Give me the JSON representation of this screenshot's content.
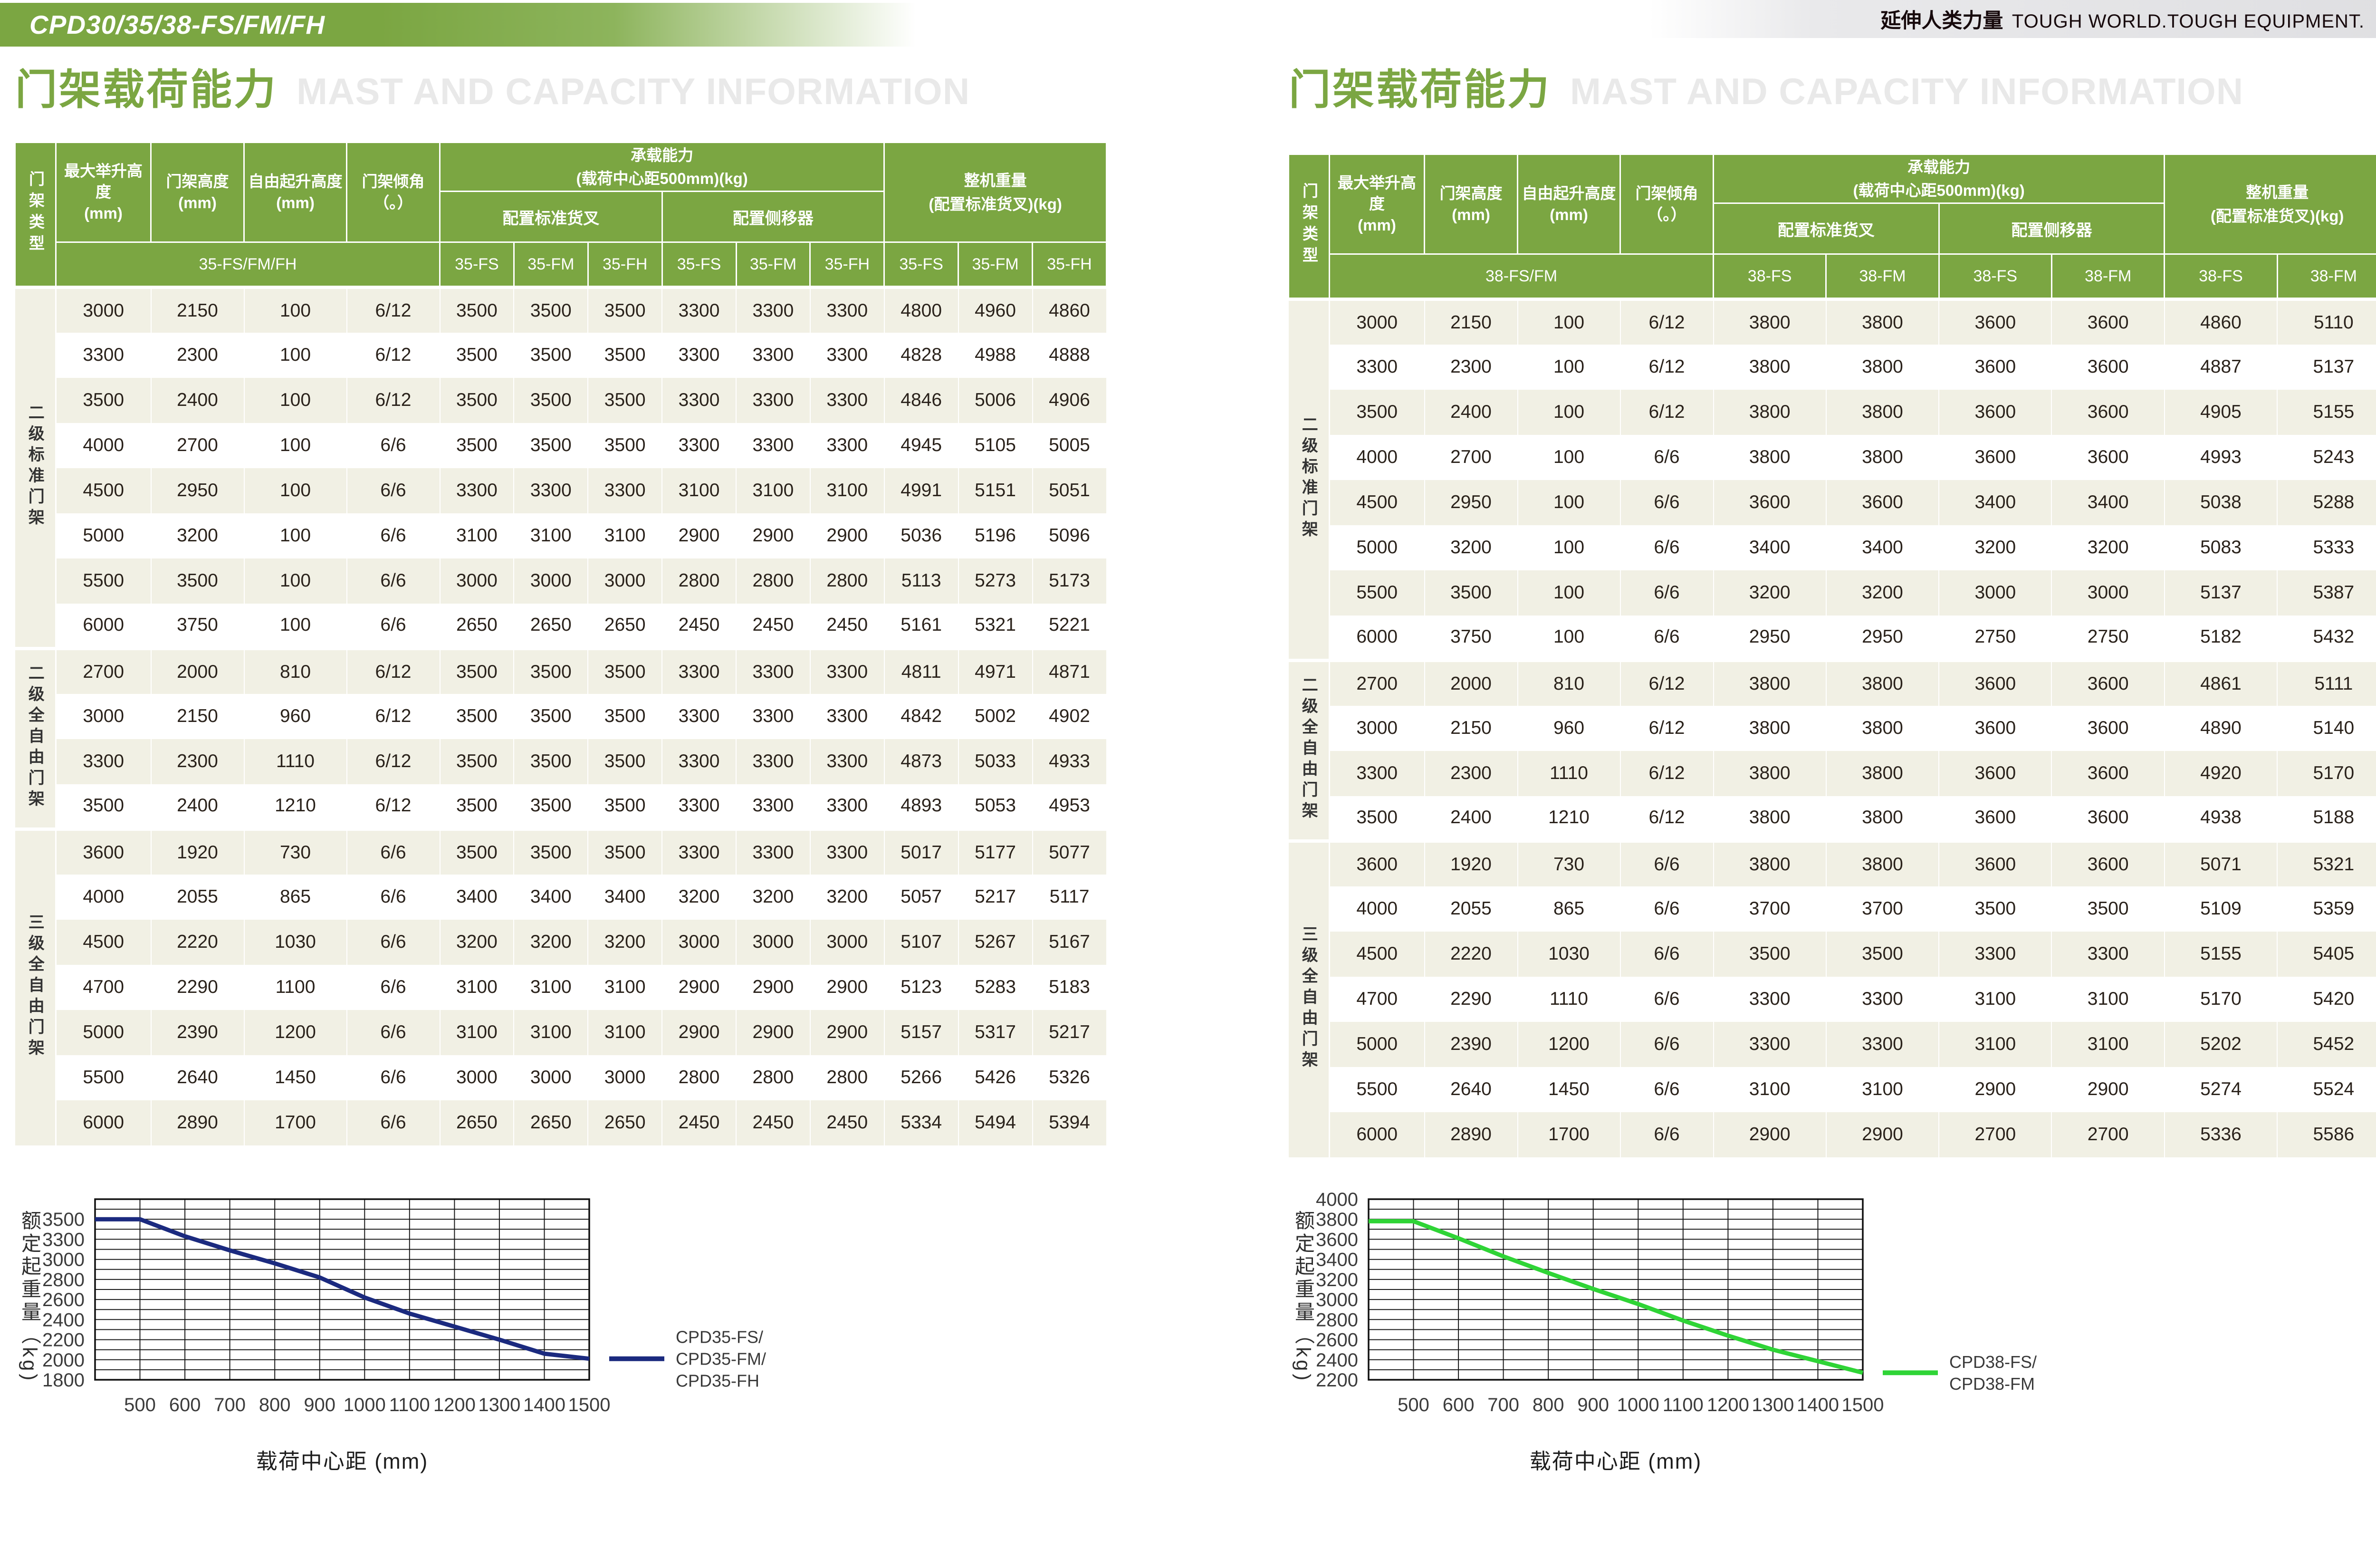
{
  "header": {
    "model_title": "CPD30/35/38-FS/FM/FH",
    "tagline_cn": "延伸人类力量",
    "tagline_en": "TOUGH WORLD.TOUGH EQUIPMENT."
  },
  "colors": {
    "brand_green": "#7ba642",
    "row_beige": "#f1f0e4",
    "curve_navy": "#1b2a7f",
    "curve_green": "#2fd436",
    "ghost_title_gray": "#e9e9e9"
  },
  "sections": [
    {
      "title_cn": "门架载荷能力",
      "title_en": "MAST AND CAPACITY INFORMATION",
      "chart_index": 0,
      "table": {
        "mast_type_header": "门架类型",
        "spec_headers": [
          "最大举升高度\n(mm)",
          "门架高度\n(mm)",
          "自由起升高度\n(mm)",
          "门架倾角\n（。）"
        ],
        "capacity_header": "承载能力\n(载荷中心距500mm)(kg)",
        "fork_header": "配置标准货叉",
        "sideshift_header": "配置侧移器",
        "weight_header": "整机重量\n(配置标准货叉)(kg)",
        "model_span_label": "35-FS/FM/FH",
        "model_columns": [
          "35-FS",
          "35-FM",
          "35-FH"
        ],
        "groups": [
          {
            "label": "二级标准门架",
            "rows": [
              [
                "3000",
                "2150",
                "100",
                "6/12",
                "3500",
                "3500",
                "3500",
                "3300",
                "3300",
                "3300",
                "4800",
                "4960",
                "4860"
              ],
              [
                "3300",
                "2300",
                "100",
                "6/12",
                "3500",
                "3500",
                "3500",
                "3300",
                "3300",
                "3300",
                "4828",
                "4988",
                "4888"
              ],
              [
                "3500",
                "2400",
                "100",
                "6/12",
                "3500",
                "3500",
                "3500",
                "3300",
                "3300",
                "3300",
                "4846",
                "5006",
                "4906"
              ],
              [
                "4000",
                "2700",
                "100",
                "6/6",
                "3500",
                "3500",
                "3500",
                "3300",
                "3300",
                "3300",
                "4945",
                "5105",
                "5005"
              ],
              [
                "4500",
                "2950",
                "100",
                "6/6",
                "3300",
                "3300",
                "3300",
                "3100",
                "3100",
                "3100",
                "4991",
                "5151",
                "5051"
              ],
              [
                "5000",
                "3200",
                "100",
                "6/6",
                "3100",
                "3100",
                "3100",
                "2900",
                "2900",
                "2900",
                "5036",
                "5196",
                "5096"
              ],
              [
                "5500",
                "3500",
                "100",
                "6/6",
                "3000",
                "3000",
                "3000",
                "2800",
                "2800",
                "2800",
                "5113",
                "5273",
                "5173"
              ],
              [
                "6000",
                "3750",
                "100",
                "6/6",
                "2650",
                "2650",
                "2650",
                "2450",
                "2450",
                "2450",
                "5161",
                "5321",
                "5221"
              ]
            ]
          },
          {
            "label": "二级全自由门架",
            "rows": [
              [
                "2700",
                "2000",
                "810",
                "6/12",
                "3500",
                "3500",
                "3500",
                "3300",
                "3300",
                "3300",
                "4811",
                "4971",
                "4871"
              ],
              [
                "3000",
                "2150",
                "960",
                "6/12",
                "3500",
                "3500",
                "3500",
                "3300",
                "3300",
                "3300",
                "4842",
                "5002",
                "4902"
              ],
              [
                "3300",
                "2300",
                "1110",
                "6/12",
                "3500",
                "3500",
                "3500",
                "3300",
                "3300",
                "3300",
                "4873",
                "5033",
                "4933"
              ],
              [
                "3500",
                "2400",
                "1210",
                "6/12",
                "3500",
                "3500",
                "3500",
                "3300",
                "3300",
                "3300",
                "4893",
                "5053",
                "4953"
              ]
            ]
          },
          {
            "label": "三级全自由门架",
            "rows": [
              [
                "3600",
                "1920",
                "730",
                "6/6",
                "3500",
                "3500",
                "3500",
                "3300",
                "3300",
                "3300",
                "5017",
                "5177",
                "5077"
              ],
              [
                "4000",
                "2055",
                "865",
                "6/6",
                "3400",
                "3400",
                "3400",
                "3200",
                "3200",
                "3200",
                "5057",
                "5217",
                "5117"
              ],
              [
                "4500",
                "2220",
                "1030",
                "6/6",
                "3200",
                "3200",
                "3200",
                "3000",
                "3000",
                "3000",
                "5107",
                "5267",
                "5167"
              ],
              [
                "4700",
                "2290",
                "1100",
                "6/6",
                "3100",
                "3100",
                "3100",
                "2900",
                "2900",
                "2900",
                "5123",
                "5283",
                "5183"
              ],
              [
                "5000",
                "2390",
                "1200",
                "6/6",
                "3100",
                "3100",
                "3100",
                "2900",
                "2900",
                "2900",
                "5157",
                "5317",
                "5217"
              ],
              [
                "5500",
                "2640",
                "1450",
                "6/6",
                "3000",
                "3000",
                "3000",
                "2800",
                "2800",
                "2800",
                "5266",
                "5426",
                "5326"
              ],
              [
                "6000",
                "2890",
                "1700",
                "6/6",
                "2650",
                "2650",
                "2650",
                "2450",
                "2450",
                "2450",
                "5334",
                "5494",
                "5394"
              ]
            ]
          }
        ]
      }
    },
    {
      "title_cn": "门架载荷能力",
      "title_en": "MAST AND CAPACITY INFORMATION",
      "chart_index": 1,
      "table": {
        "mast_type_header": "门架类型",
        "spec_headers": [
          "最大举升高度\n(mm)",
          "门架高度\n(mm)",
          "自由起升高度\n(mm)",
          "门架倾角\n（。）"
        ],
        "capacity_header": "承载能力\n(载荷中心距500mm)(kg)",
        "fork_header": "配置标准货叉",
        "sideshift_header": "配置侧移器",
        "weight_header": "整机重量\n(配置标准货叉)(kg)",
        "model_span_label": "38-FS/FM",
        "model_columns": [
          "38-FS",
          "38-FM"
        ],
        "groups": [
          {
            "label": "二级标准门架",
            "rows": [
              [
                "3000",
                "2150",
                "100",
                "6/12",
                "3800",
                "3800",
                "3600",
                "3600",
                "4860",
                "5110"
              ],
              [
                "3300",
                "2300",
                "100",
                "6/12",
                "3800",
                "3800",
                "3600",
                "3600",
                "4887",
                "5137"
              ],
              [
                "3500",
                "2400",
                "100",
                "6/12",
                "3800",
                "3800",
                "3600",
                "3600",
                "4905",
                "5155"
              ],
              [
                "4000",
                "2700",
                "100",
                "6/6",
                "3800",
                "3800",
                "3600",
                "3600",
                "4993",
                "5243"
              ],
              [
                "4500",
                "2950",
                "100",
                "6/6",
                "3600",
                "3600",
                "3400",
                "3400",
                "5038",
                "5288"
              ],
              [
                "5000",
                "3200",
                "100",
                "6/6",
                "3400",
                "3400",
                "3200",
                "3200",
                "5083",
                "5333"
              ],
              [
                "5500",
                "3500",
                "100",
                "6/6",
                "3200",
                "3200",
                "3000",
                "3000",
                "5137",
                "5387"
              ],
              [
                "6000",
                "3750",
                "100",
                "6/6",
                "2950",
                "2950",
                "2750",
                "2750",
                "5182",
                "5432"
              ]
            ]
          },
          {
            "label": "二级全自由门架",
            "rows": [
              [
                "2700",
                "2000",
                "810",
                "6/12",
                "3800",
                "3800",
                "3600",
                "3600",
                "4861",
                "5111"
              ],
              [
                "3000",
                "2150",
                "960",
                "6/12",
                "3800",
                "3800",
                "3600",
                "3600",
                "4890",
                "5140"
              ],
              [
                "3300",
                "2300",
                "1110",
                "6/12",
                "3800",
                "3800",
                "3600",
                "3600",
                "4920",
                "5170"
              ],
              [
                "3500",
                "2400",
                "1210",
                "6/12",
                "3800",
                "3800",
                "3600",
                "3600",
                "4938",
                "5188"
              ]
            ]
          },
          {
            "label": "三级全自由门架",
            "rows": [
              [
                "3600",
                "1920",
                "730",
                "6/6",
                "3800",
                "3800",
                "3600",
                "3600",
                "5071",
                "5321"
              ],
              [
                "4000",
                "2055",
                "865",
                "6/6",
                "3700",
                "3700",
                "3500",
                "3500",
                "5109",
                "5359"
              ],
              [
                "4500",
                "2220",
                "1030",
                "6/6",
                "3500",
                "3500",
                "3300",
                "3300",
                "5155",
                "5405"
              ],
              [
                "4700",
                "2290",
                "1110",
                "6/6",
                "3300",
                "3300",
                "3100",
                "3100",
                "5170",
                "5420"
              ],
              [
                "5000",
                "2390",
                "1200",
                "6/6",
                "3300",
                "3300",
                "3100",
                "3100",
                "5202",
                "5452"
              ],
              [
                "5500",
                "2640",
                "1450",
                "6/6",
                "3100",
                "3100",
                "2900",
                "2900",
                "5274",
                "5524"
              ],
              [
                "6000",
                "2890",
                "1700",
                "6/6",
                "2900",
                "2900",
                "2700",
                "2700",
                "5336",
                "5586"
              ]
            ]
          }
        ]
      }
    }
  ],
  "chart_data": [
    {
      "type": "line",
      "title": "",
      "xlabel": "载荷中心距 (mm)",
      "ylabel": "额定起重量（kg)",
      "x_axis_start": 400,
      "x_ticks": [
        500,
        600,
        700,
        800,
        900,
        1000,
        1100,
        1200,
        1300,
        1400,
        1500
      ],
      "y_ticks": [
        3500,
        3300,
        3000,
        2800,
        2600,
        2400,
        2200,
        2000,
        1800
      ],
      "first_tick_unit": 1,
      "grid": true,
      "legend_position": "right",
      "legend_lines": [
        "CPD35-FS/",
        "CPD35-FM/",
        "CPD35-FH"
      ],
      "series": [
        {
          "name": "CPD35-FS/FM/FH",
          "color": "#1b2a7f",
          "x": [
            400,
            500,
            600,
            700,
            800,
            900,
            1000,
            1100,
            1200,
            1300,
            1400,
            1500
          ],
          "values": [
            3500,
            3500,
            3330,
            3135,
            2960,
            2820,
            2620,
            2460,
            2330,
            2200,
            2060,
            2010
          ]
        }
      ]
    },
    {
      "type": "line",
      "title": "",
      "xlabel": "载荷中心距 (mm)",
      "ylabel": "额定起重量（kg)",
      "x_axis_start": 400,
      "x_ticks": [
        500,
        600,
        700,
        800,
        900,
        1000,
        1100,
        1200,
        1300,
        1400,
        1500
      ],
      "y_ticks": [
        4000,
        3800,
        3600,
        3400,
        3200,
        3000,
        2800,
        2600,
        2400,
        2200
      ],
      "first_tick_unit": 0,
      "grid": true,
      "legend_position": "right",
      "legend_lines": [
        "CPD38-FS/",
        "CPD38-FM"
      ],
      "series": [
        {
          "name": "CPD38-FS/FM",
          "color": "#2fd436",
          "x": [
            400,
            500,
            600,
            700,
            800,
            900,
            1000,
            1100,
            1200,
            1300,
            1400,
            1500
          ],
          "values": [
            3780,
            3780,
            3610,
            3430,
            3265,
            3105,
            2955,
            2790,
            2640,
            2500,
            2385,
            2270
          ]
        }
      ]
    }
  ]
}
